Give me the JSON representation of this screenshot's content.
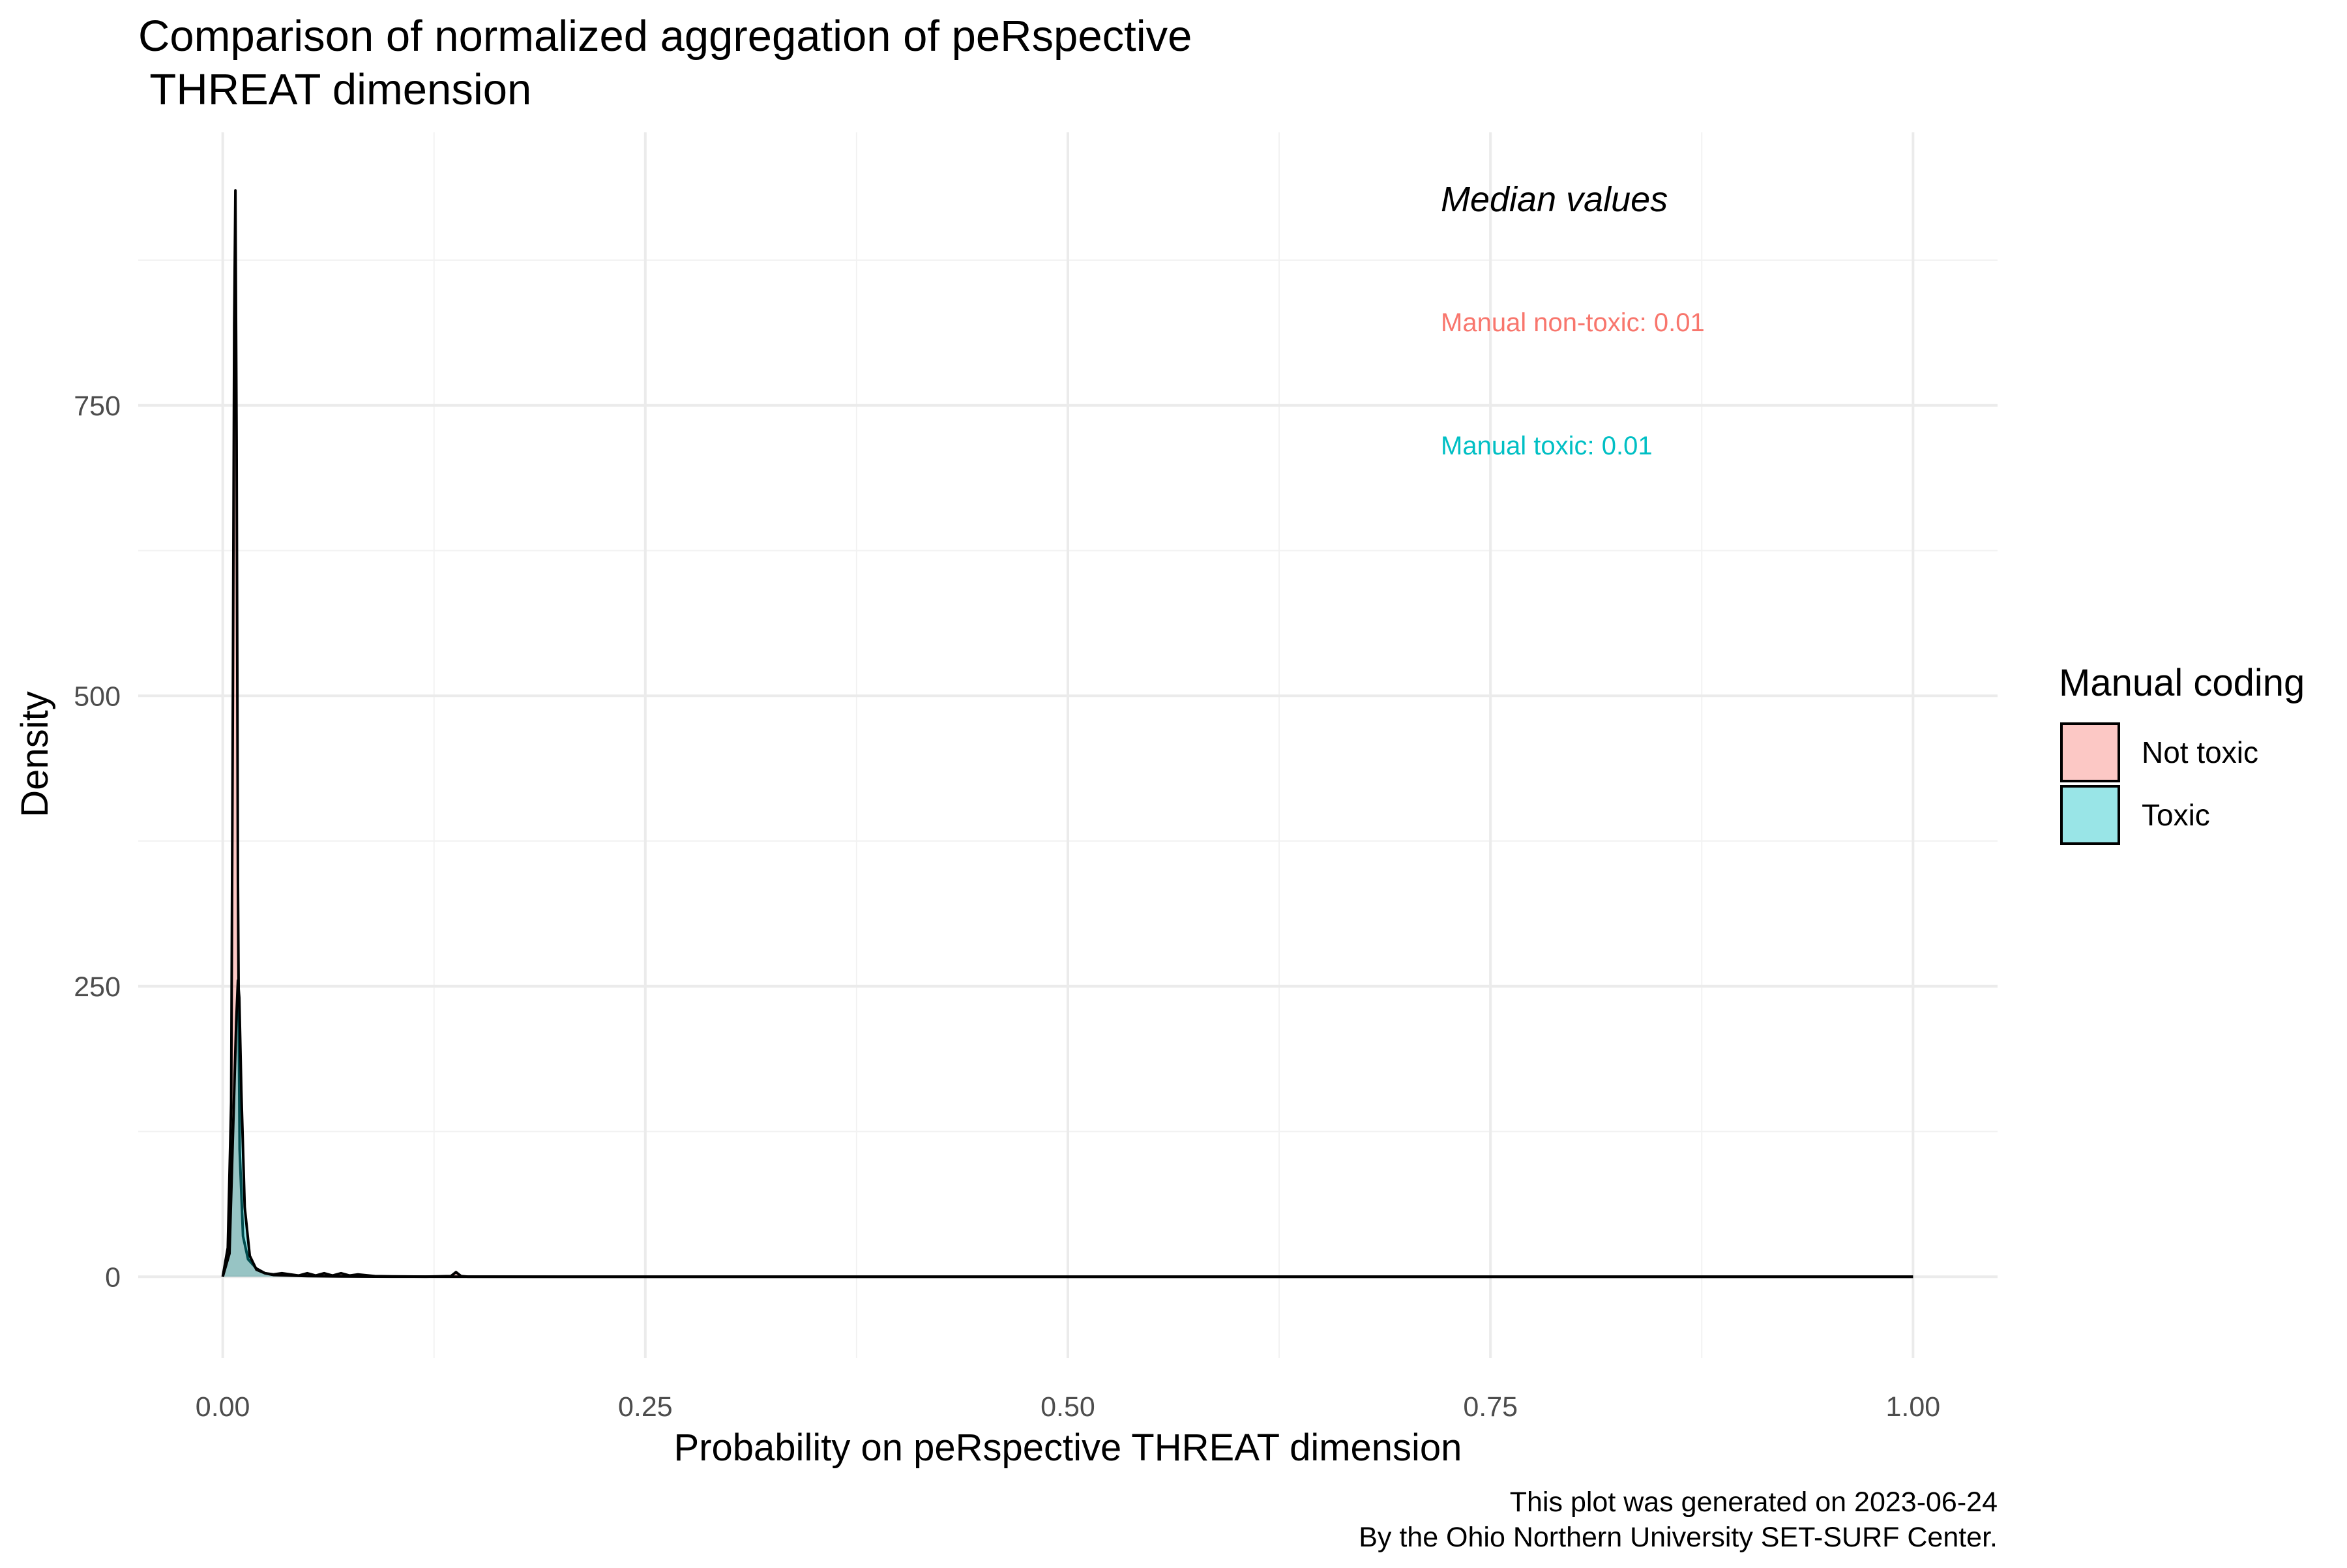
{
  "chart_data": {
    "type": "area",
    "title_line1": "Comparison of normalized aggregation of peRspective",
    "title_line2": " THREAT dimension",
    "xlabel": "Probability on peRspective THREAT dimension",
    "ylabel": "Density",
    "xlim": [
      -0.05,
      1.05
    ],
    "ylim": [
      -70,
      985
    ],
    "x_ticks": [
      0.0,
      0.25,
      0.5,
      0.75,
      1.0
    ],
    "x_tick_labels": [
      "0.00",
      "0.25",
      "0.50",
      "0.75",
      "1.00"
    ],
    "y_ticks": [
      0,
      250,
      500,
      750
    ],
    "y_tick_labels": [
      "0",
      "250",
      "500",
      "750"
    ],
    "grid": true,
    "legend": {
      "title": "Manual coding",
      "position": "right",
      "entries": [
        {
          "label": "Not toxic",
          "color": "#F8766D"
        },
        {
          "label": "Toxic",
          "color": "#00BFC4"
        }
      ]
    },
    "annotations": {
      "heading": "Median values",
      "non_toxic": "Manual non-toxic: 0.01",
      "toxic": "Manual toxic: 0.01"
    },
    "caption_line1": "This plot was generated on 2023-06-24",
    "caption_line2": "By the Ohio Northern University SET-SURF Center.",
    "series": [
      {
        "name": "Not toxic",
        "color": "#F8766D",
        "x": [
          0.0,
          0.003,
          0.005,
          0.006,
          0.0068,
          0.0075,
          0.0082,
          0.009,
          0.01,
          0.012,
          0.015,
          0.02,
          0.025,
          0.03,
          0.035,
          0.04,
          0.045,
          0.05,
          0.055,
          0.06,
          0.065,
          0.07,
          0.075,
          0.08,
          0.09,
          0.1,
          0.12,
          0.135,
          0.138,
          0.141,
          0.145,
          0.2,
          0.3,
          0.5,
          0.75,
          1.0
        ],
        "y": [
          0,
          25,
          150,
          500,
          820,
          935,
          720,
          340,
          110,
          35,
          15,
          7,
          3,
          2,
          3,
          2,
          1,
          3,
          1,
          3,
          1,
          3,
          1,
          2,
          0.5,
          0.3,
          0.1,
          0.5,
          4,
          0.5,
          0.1,
          0,
          0,
          0,
          0,
          0
        ]
      },
      {
        "name": "Toxic",
        "color": "#00BFC4",
        "x": [
          0.0,
          0.004,
          0.006,
          0.008,
          0.009,
          0.0098,
          0.011,
          0.013,
          0.016,
          0.02,
          0.025,
          0.03,
          0.04,
          0.05,
          0.06,
          0.07,
          0.08,
          0.1,
          0.2,
          0.5,
          0.75,
          1.0
        ],
        "y": [
          0,
          20,
          120,
          220,
          255,
          240,
          160,
          60,
          18,
          6,
          3,
          1.5,
          1,
          0.6,
          0.4,
          0.3,
          0.2,
          0.1,
          0,
          0,
          0,
          0
        ]
      }
    ]
  }
}
